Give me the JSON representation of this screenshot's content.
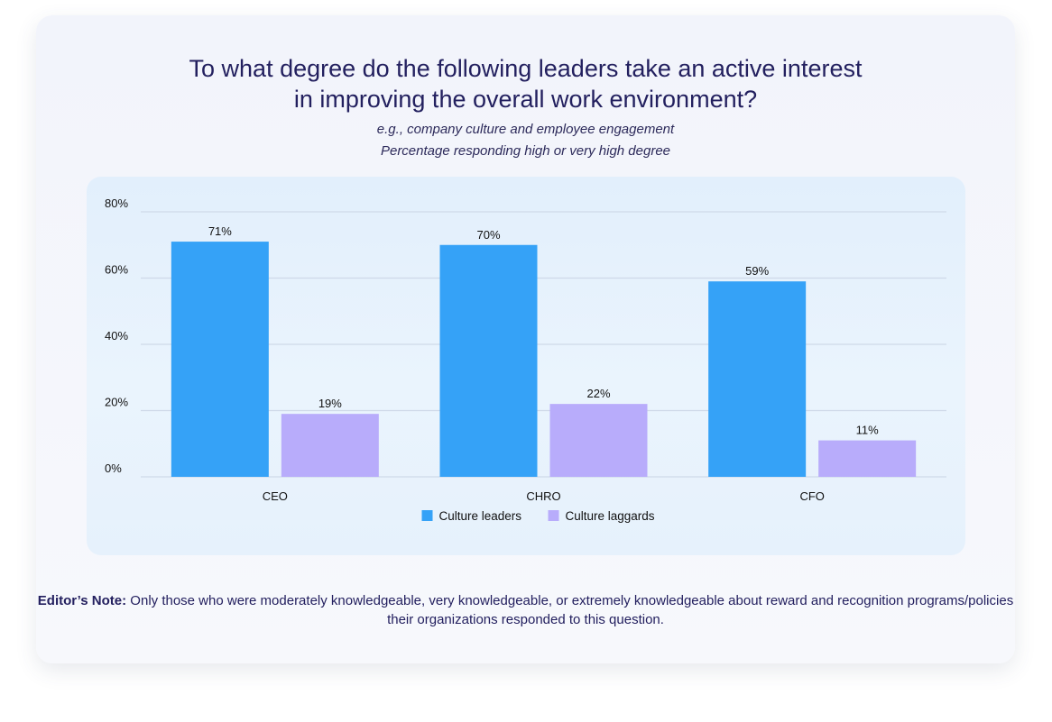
{
  "title": {
    "line1": "To what degree do the following leaders take an active interest",
    "line2": "in improving the overall work environment?"
  },
  "subtitle": {
    "line1": "e.g., company culture and employee engagement",
    "line2": "Percentage responding high or very high degree"
  },
  "note": {
    "label": "Editor’s Note:",
    "text": " Only those who were moderately knowledgeable, very knowledgeable, or extremely knowledgeable about reward and recognition programs/policies their organizations responded to this question."
  },
  "colors": {
    "leaders": "#35a2f7",
    "laggards": "#b8acfb",
    "grid": "#cfd9e8",
    "text": "#111111"
  },
  "chart_data": {
    "type": "bar",
    "categories": [
      "CEO",
      "CHRO",
      "CFO"
    ],
    "series": [
      {
        "name": "Culture leaders",
        "values": [
          71,
          70,
          59
        ],
        "labels": [
          "71%",
          "70%",
          "59%"
        ]
      },
      {
        "name": "Culture laggards",
        "values": [
          19,
          22,
          11
        ],
        "labels": [
          "19%",
          "22%",
          "11%"
        ]
      }
    ],
    "yticks": [
      0,
      20,
      40,
      60,
      80
    ],
    "ytick_labels": [
      "0%",
      "20%",
      "40%",
      "60%",
      "80%"
    ],
    "ylim": [
      0,
      80
    ],
    "grid": true,
    "legend": "bottom-center"
  }
}
